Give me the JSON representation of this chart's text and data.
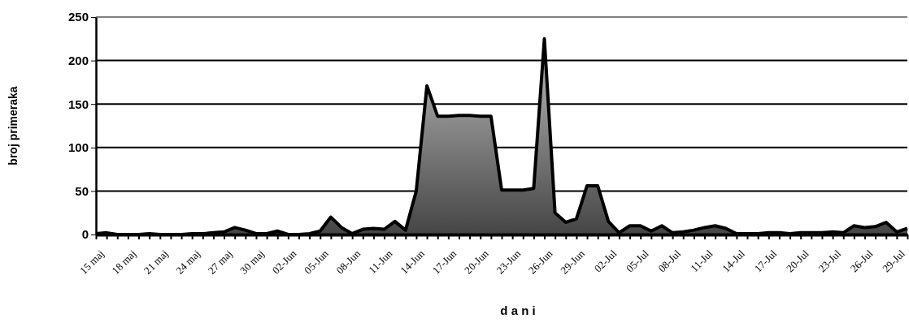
{
  "chart_data": {
    "type": "area",
    "xlabel": "d a n i",
    "ylabel": "broj primeraka",
    "categories": [
      "15 maj",
      null,
      null,
      "18 maj",
      null,
      null,
      "21 maj",
      null,
      null,
      "24 maj",
      null,
      null,
      "27 maj",
      null,
      null,
      "30 maj",
      null,
      null,
      "02-Jun",
      null,
      null,
      "05-Jun",
      null,
      null,
      "08-Jun",
      null,
      null,
      "11-Jun",
      null,
      null,
      "14-Jun",
      null,
      null,
      "17-Jun",
      null,
      null,
      "20-Jun",
      null,
      null,
      "23-Jun",
      null,
      null,
      "26-Jun",
      null,
      null,
      "29-Jun",
      null,
      null,
      "02-Jul",
      null,
      null,
      "05-Jul",
      null,
      null,
      "08-Jul",
      null,
      null,
      "11-Jul",
      null,
      null,
      "14-Jul",
      null,
      null,
      "17-Jul",
      null,
      null,
      "20-Jul",
      null,
      null,
      "23-Jul",
      null,
      null,
      "26-Jul",
      null,
      null,
      "29-Jul",
      null
    ],
    "series": [
      {
        "color": "#666666",
        "values": [
          1,
          2,
          0,
          0,
          0,
          1,
          0,
          0,
          0,
          1,
          1,
          2,
          3,
          8,
          5,
          1,
          1,
          4,
          0,
          0,
          1,
          4,
          20,
          8,
          1,
          6,
          7,
          6,
          15,
          5,
          50,
          171,
          136,
          136,
          137,
          137,
          136,
          136,
          51,
          51,
          51,
          53,
          225,
          25,
          14,
          18,
          56,
          56,
          15,
          2,
          10,
          10,
          4,
          10,
          2,
          3,
          5,
          8,
          10,
          7,
          1,
          1,
          1,
          2,
          2,
          1,
          2,
          2,
          2,
          3,
          2,
          10,
          8,
          9,
          14,
          3,
          7
        ]
      }
    ],
    "ylim": [
      0,
      250
    ],
    "yticks": [
      0,
      50,
      100,
      150,
      200,
      250
    ],
    "grid": "y"
  }
}
